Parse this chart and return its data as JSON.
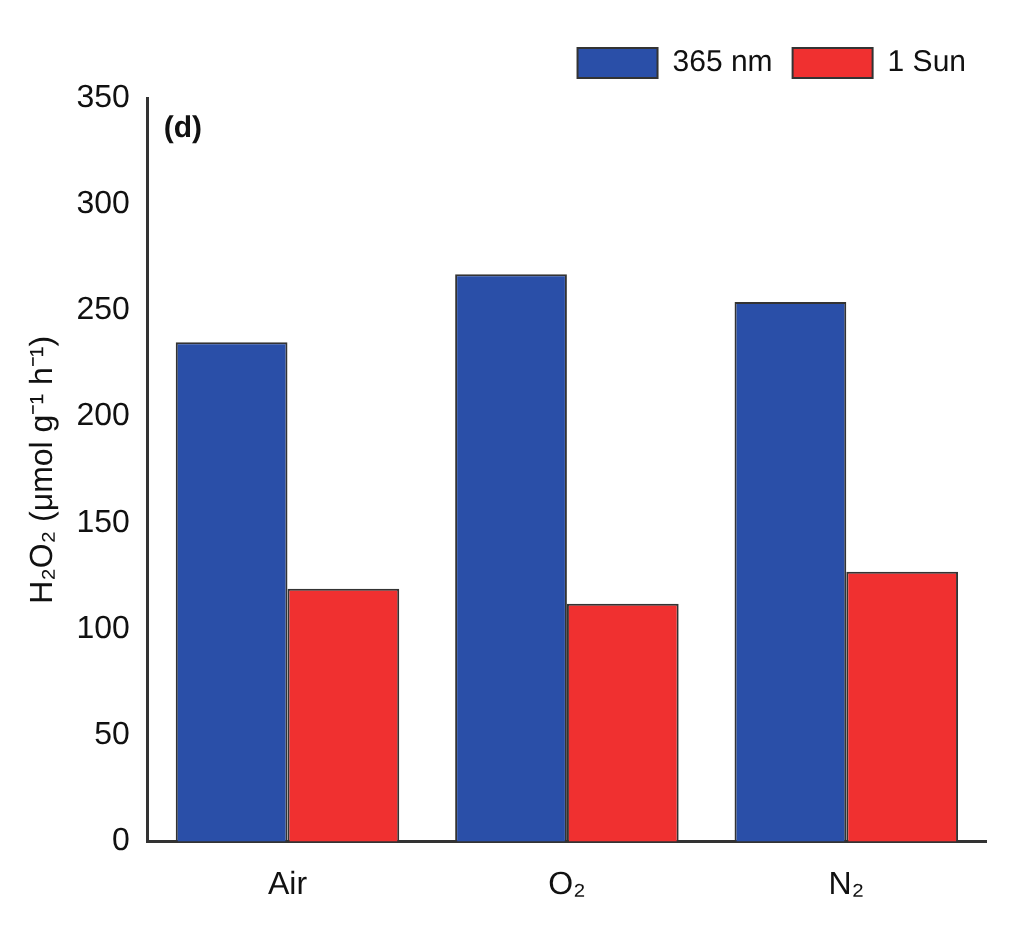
{
  "chart_data": {
    "type": "bar",
    "ylabel": "H₂O₂ (μmol g⁻¹ h⁻¹)",
    "annotations": [
      "(d)"
    ],
    "categories": [
      "Air",
      "O₂",
      "N₂"
    ],
    "series": [
      {
        "name": "365 nm",
        "color": "#2a4fa8",
        "values": [
          235,
          267,
          254
        ]
      },
      {
        "name": "1 Sun",
        "color": "#f03030",
        "values": [
          119,
          112,
          127
        ]
      }
    ],
    "ylim": [
      0,
      350
    ],
    "yticks": [
      0,
      50,
      100,
      150,
      200,
      250,
      300,
      350
    ],
    "grid": false,
    "legend": "top right"
  }
}
